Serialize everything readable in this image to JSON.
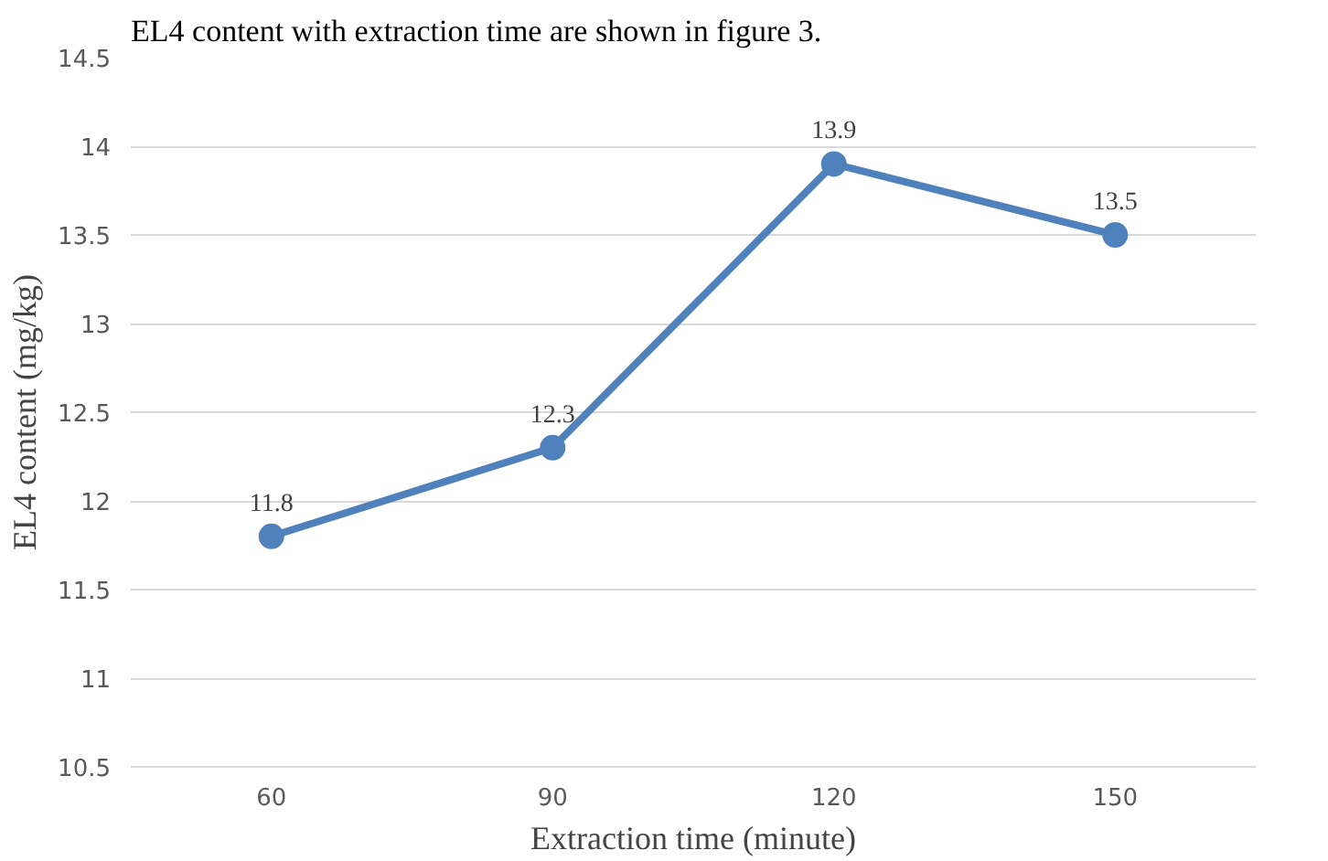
{
  "chart_data": {
    "type": "line",
    "annotations": [
      "EL4 content with extraction time are shown in figure 3."
    ],
    "xlabel": "Extraction time (minute)",
    "ylabel": "EL4 content (mg/kg)",
    "categories": [
      "60",
      "90",
      "120",
      "150"
    ],
    "series": [
      {
        "color": "#4f81bd",
        "values": [
          11.8,
          12.3,
          13.9,
          13.5
        ]
      }
    ],
    "ylim": [
      10.5,
      14.5
    ],
    "yticks": [
      10.5,
      11,
      11.5,
      12,
      12.5,
      13,
      13.5,
      14,
      14.5
    ],
    "grid": "y",
    "marker": "circle",
    "line_style": "solid",
    "data_labels": true
  }
}
